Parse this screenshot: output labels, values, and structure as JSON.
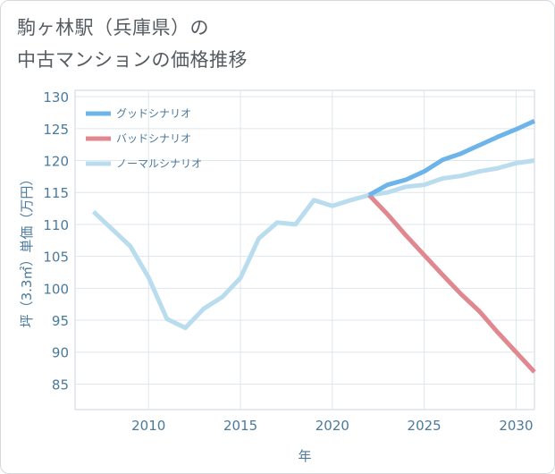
{
  "title_line1": "駒ヶ林駅（兵庫県）の",
  "title_line2": "中古マンションの価格推移",
  "chart_data": {
    "type": "line",
    "title": "駒ヶ林駅（兵庫県）の中古マンションの価格推移",
    "xlabel": "年",
    "ylabel": "坪（3.3㎡）単価（万円）",
    "xlim": [
      2006,
      2031
    ],
    "ylim": [
      81,
      131
    ],
    "xticks": [
      2010,
      2015,
      2020,
      2025,
      2030
    ],
    "yticks": [
      85,
      90,
      95,
      100,
      105,
      110,
      115,
      120,
      125,
      130
    ],
    "grid": true,
    "legend_position": "top-left",
    "series": [
      {
        "name": "グッドシナリオ",
        "color": "#6cb4ea",
        "x": [
          2022,
          2023,
          2024,
          2025,
          2026,
          2027,
          2028,
          2029,
          2030,
          2031
        ],
        "y": [
          114.6,
          116.2,
          117.0,
          118.3,
          120.1,
          121.1,
          122.4,
          123.7,
          124.9,
          126.2
        ]
      },
      {
        "name": "バッドシナリオ",
        "color": "#e0878f",
        "x": [
          2022,
          2023,
          2024,
          2025,
          2026,
          2027,
          2028,
          2029,
          2030,
          2031
        ],
        "y": [
          114.6,
          111.6,
          108.3,
          105.2,
          102.1,
          99.1,
          96.4,
          93.1,
          90.0,
          86.9
        ]
      },
      {
        "name": "ノーマルシナリオ",
        "color": "#b9dcee",
        "x": [
          2007,
          2008,
          2009,
          2010,
          2011,
          2012,
          2013,
          2014,
          2015,
          2016,
          2017,
          2018,
          2019,
          2020,
          2021,
          2022,
          2023,
          2024,
          2025,
          2026,
          2027,
          2028,
          2029,
          2030,
          2031
        ],
        "y": [
          112.0,
          109.3,
          106.6,
          101.7,
          95.2,
          93.8,
          96.8,
          98.6,
          101.6,
          107.8,
          110.3,
          110.0,
          113.8,
          112.9,
          113.8,
          114.6,
          115.0,
          115.9,
          116.2,
          117.2,
          117.6,
          118.3,
          118.8,
          119.6,
          120.0
        ]
      }
    ]
  }
}
